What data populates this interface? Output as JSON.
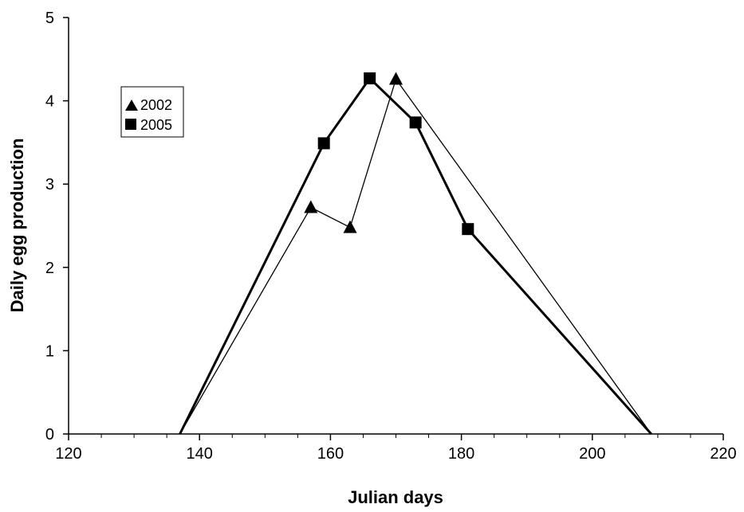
{
  "chart_data": {
    "type": "line",
    "title": "",
    "xlabel": "Julian days",
    "ylabel": "Daily egg production",
    "xlim": [
      120,
      220
    ],
    "ylim": [
      0,
      5
    ],
    "x_ticks": [
      "120",
      "140",
      "160",
      "180",
      "200",
      "220"
    ],
    "y_ticks": [
      "0",
      "1",
      "2",
      "3",
      "4",
      "5"
    ],
    "grid": false,
    "legend_position": "top-left",
    "series": [
      {
        "name": "2002",
        "marker": "triangle",
        "line_weight": "thin",
        "x": [
          137,
          157,
          163,
          170,
          209
        ],
        "y": [
          0,
          2.72,
          2.48,
          4.26,
          0
        ]
      },
      {
        "name": "2005",
        "marker": "square",
        "line_weight": "thick",
        "x": [
          137,
          159,
          166,
          173,
          181,
          209
        ],
        "y": [
          0,
          3.49,
          4.27,
          3.74,
          2.46,
          0
        ]
      }
    ],
    "colors": {
      "line": "#000000",
      "marker": "#000000",
      "background": "#ffffff"
    }
  }
}
